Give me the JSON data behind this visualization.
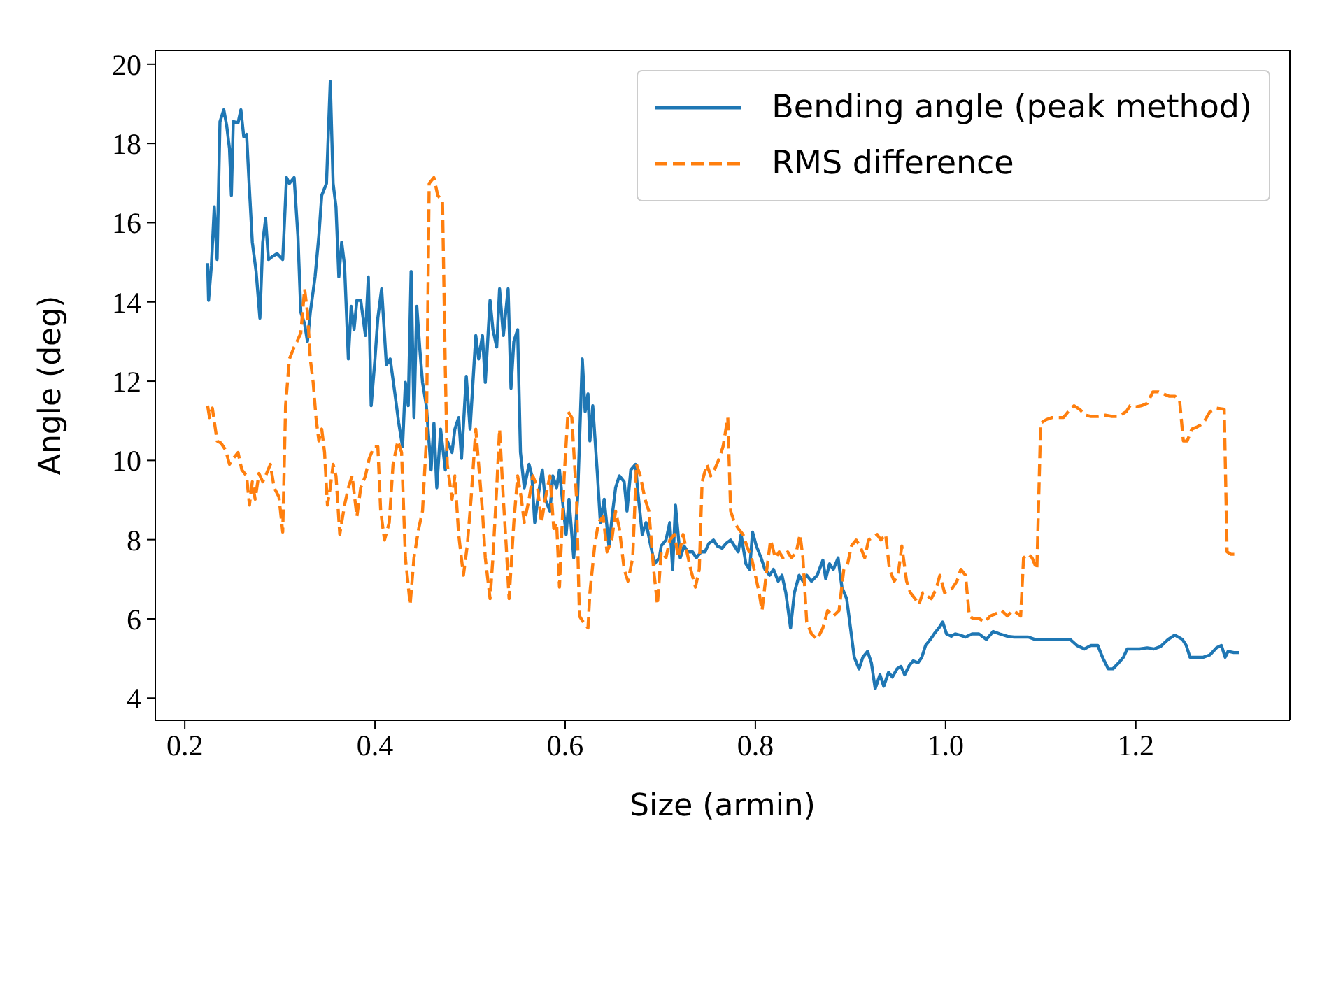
{
  "chart_data": {
    "type": "line",
    "xlabel": "Size (armin)",
    "ylabel": "Angle (deg)",
    "xlim": [
      0.169,
      1.362
    ],
    "xticks": [
      0.2,
      0.4,
      0.6,
      0.8,
      {
        "value": 1.0,
        "label": "1.0"
      },
      1.2
    ],
    "ylim": [
      3.44,
      20.35
    ],
    "yticks": [
      4,
      6,
      8,
      10,
      12,
      14,
      16,
      18,
      20
    ],
    "legend": "top right",
    "marker": "none",
    "series": [
      {
        "name": "Bending angle (peak method)",
        "color": "#1f77b4",
        "line_style": "solid",
        "x": [
          0.224,
          0.225,
          0.228,
          0.231,
          0.234,
          0.237,
          0.241,
          0.244,
          0.247,
          0.249,
          0.251,
          0.256,
          0.259,
          0.262,
          0.265,
          0.268,
          0.271,
          0.275,
          0.279,
          0.282,
          0.285,
          0.288,
          0.293,
          0.297,
          0.303,
          0.307,
          0.31,
          0.315,
          0.319,
          0.322,
          0.326,
          0.329,
          0.332,
          0.337,
          0.341,
          0.344,
          0.349,
          0.353,
          0.356,
          0.359,
          0.362,
          0.365,
          0.368,
          0.372,
          0.375,
          0.378,
          0.381,
          0.385,
          0.39,
          0.393,
          0.396,
          0.4,
          0.403,
          0.407,
          0.412,
          0.416,
          0.421,
          0.425,
          0.429,
          0.432,
          0.435,
          0.438,
          0.441,
          0.444,
          0.447,
          0.45,
          0.454,
          0.459,
          0.462,
          0.465,
          0.469,
          0.474,
          0.476,
          0.481,
          0.484,
          0.488,
          0.491,
          0.496,
          0.5,
          0.503,
          0.506,
          0.509,
          0.513,
          0.516,
          0.521,
          0.524,
          0.528,
          0.531,
          0.535,
          0.54,
          0.543,
          0.546,
          0.55,
          0.553,
          0.557,
          0.562,
          0.565,
          0.568,
          0.572,
          0.576,
          0.579,
          0.584,
          0.587,
          0.591,
          0.594,
          0.597,
          0.601,
          0.604,
          0.609,
          0.613,
          0.618,
          0.621,
          0.624,
          0.626,
          0.629,
          0.634,
          0.637,
          0.641,
          0.646,
          0.65,
          0.653,
          0.657,
          0.662,
          0.665,
          0.669,
          0.674,
          0.676,
          0.681,
          0.685,
          0.69,
          0.694,
          0.699,
          0.701,
          0.706,
          0.71,
          0.713,
          0.716,
          0.721,
          0.725,
          0.729,
          0.734,
          0.738,
          0.743,
          0.747,
          0.751,
          0.756,
          0.76,
          0.765,
          0.769,
          0.774,
          0.778,
          0.782,
          0.785,
          0.79,
          0.794,
          0.797,
          0.801,
          0.806,
          0.81,
          0.815,
          0.819,
          0.824,
          0.828,
          0.832,
          0.837,
          0.841,
          0.846,
          0.85,
          0.854,
          0.859,
          0.865,
          0.871,
          0.874,
          0.878,
          0.882,
          0.887,
          0.891,
          0.896,
          0.9,
          0.904,
          0.909,
          0.913,
          0.918,
          0.922,
          0.926,
          0.931,
          0.935,
          0.94,
          0.944,
          0.949,
          0.953,
          0.957,
          0.962,
          0.966,
          0.971,
          0.975,
          0.979,
          0.984,
          0.988,
          0.993,
          0.997,
          1.001,
          1.006,
          1.01,
          1.015,
          1.021,
          1.028,
          1.035,
          1.043,
          1.05,
          1.057,
          1.065,
          1.072,
          1.079,
          1.087,
          1.094,
          1.101,
          1.109,
          1.116,
          1.124,
          1.131,
          1.138,
          1.146,
          1.153,
          1.16,
          1.165,
          1.171,
          1.176,
          1.182,
          1.187,
          1.191,
          1.197,
          1.204,
          1.212,
          1.219,
          1.226,
          1.234,
          1.241,
          1.249,
          1.253,
          1.257,
          1.263,
          1.271,
          1.278,
          1.285,
          1.29,
          1.294,
          1.297,
          1.303,
          1.309
        ],
        "values": [
          14.98,
          14.04,
          14.92,
          16.4,
          15.07,
          18.55,
          18.85,
          18.46,
          17.87,
          16.69,
          18.55,
          18.52,
          18.85,
          18.17,
          18.23,
          16.84,
          15.51,
          14.77,
          13.59,
          15.51,
          16.1,
          15.07,
          15.16,
          15.22,
          15.07,
          17.14,
          16.99,
          17.14,
          15.66,
          13.74,
          13.45,
          13.0,
          13.74,
          14.63,
          15.66,
          16.69,
          16.99,
          19.56,
          16.99,
          16.4,
          14.63,
          15.51,
          14.92,
          12.56,
          13.89,
          13.3,
          14.04,
          14.04,
          13.15,
          14.63,
          11.38,
          12.56,
          13.59,
          14.33,
          12.41,
          12.56,
          11.68,
          10.94,
          10.35,
          11.97,
          11.38,
          14.77,
          11.08,
          13.89,
          12.86,
          11.97,
          11.38,
          9.76,
          10.94,
          9.31,
          10.79,
          9.76,
          10.49,
          10.2,
          10.79,
          11.08,
          10.05,
          12.12,
          10.79,
          11.97,
          13.15,
          12.56,
          13.15,
          11.97,
          14.04,
          13.3,
          12.86,
          14.33,
          13.15,
          14.33,
          11.82,
          13.0,
          13.3,
          10.2,
          9.31,
          9.9,
          9.61,
          8.43,
          9.17,
          9.76,
          9.02,
          8.72,
          9.61,
          9.31,
          9.76,
          9.02,
          8.13,
          9.02,
          7.54,
          9.02,
          12.56,
          11.23,
          11.68,
          10.49,
          11.38,
          9.61,
          8.43,
          9.02,
          7.84,
          8.72,
          9.31,
          9.61,
          9.46,
          8.72,
          9.76,
          9.9,
          9.31,
          8.13,
          8.43,
          7.84,
          7.39,
          7.54,
          7.84,
          7.99,
          8.43,
          7.25,
          8.87,
          7.54,
          7.84,
          7.69,
          7.69,
          7.54,
          7.69,
          7.69,
          7.9,
          7.99,
          7.84,
          7.78,
          7.9,
          7.99,
          7.84,
          7.69,
          8.13,
          7.39,
          7.25,
          8.19,
          7.84,
          7.54,
          7.25,
          7.1,
          7.25,
          6.95,
          7.1,
          6.66,
          5.77,
          6.66,
          7.1,
          6.95,
          7.1,
          6.95,
          7.1,
          7.48,
          7.01,
          7.39,
          7.25,
          7.54,
          6.8,
          6.51,
          5.77,
          5.03,
          4.74,
          5.03,
          5.18,
          4.89,
          4.24,
          4.59,
          4.3,
          4.65,
          4.53,
          4.74,
          4.8,
          4.59,
          4.83,
          4.94,
          4.89,
          5.03,
          5.33,
          5.48,
          5.62,
          5.77,
          5.92,
          5.62,
          5.56,
          5.62,
          5.59,
          5.54,
          5.62,
          5.62,
          5.48,
          5.68,
          5.62,
          5.56,
          5.54,
          5.54,
          5.54,
          5.48,
          5.48,
          5.48,
          5.48,
          5.48,
          5.48,
          5.33,
          5.24,
          5.33,
          5.33,
          5.03,
          4.74,
          4.74,
          4.89,
          5.03,
          5.24,
          5.24,
          5.24,
          5.27,
          5.24,
          5.3,
          5.48,
          5.59,
          5.48,
          5.33,
          5.03,
          5.03,
          5.03,
          5.09,
          5.27,
          5.33,
          5.03,
          5.18,
          5.15,
          5.15
        ]
      },
      {
        "name": "RMS difference",
        "color": "#ff7f0e",
        "line_style": "dashed",
        "x": [
          0.224,
          0.226,
          0.229,
          0.234,
          0.238,
          0.243,
          0.247,
          0.251,
          0.256,
          0.26,
          0.265,
          0.268,
          0.271,
          0.274,
          0.278,
          0.282,
          0.285,
          0.29,
          0.294,
          0.299,
          0.303,
          0.306,
          0.31,
          0.315,
          0.318,
          0.322,
          0.326,
          0.329,
          0.332,
          0.335,
          0.338,
          0.341,
          0.344,
          0.347,
          0.35,
          0.353,
          0.356,
          0.359,
          0.363,
          0.368,
          0.372,
          0.376,
          0.381,
          0.385,
          0.39,
          0.394,
          0.399,
          0.403,
          0.406,
          0.41,
          0.415,
          0.419,
          0.424,
          0.428,
          0.432,
          0.437,
          0.441,
          0.446,
          0.45,
          0.454,
          0.457,
          0.462,
          0.466,
          0.471,
          0.474,
          0.476,
          0.481,
          0.484,
          0.488,
          0.493,
          0.497,
          0.501,
          0.506,
          0.51,
          0.513,
          0.516,
          0.521,
          0.524,
          0.528,
          0.531,
          0.535,
          0.538,
          0.541,
          0.546,
          0.55,
          0.554,
          0.557,
          0.562,
          0.566,
          0.571,
          0.575,
          0.579,
          0.584,
          0.588,
          0.591,
          0.594,
          0.599,
          0.603,
          0.607,
          0.612,
          0.615,
          0.619,
          0.624,
          0.626,
          0.631,
          0.635,
          0.64,
          0.644,
          0.649,
          0.653,
          0.657,
          0.662,
          0.666,
          0.671,
          0.675,
          0.679,
          0.684,
          0.688,
          0.693,
          0.697,
          0.701,
          0.706,
          0.71,
          0.715,
          0.719,
          0.724,
          0.728,
          0.732,
          0.737,
          0.741,
          0.744,
          0.749,
          0.753,
          0.757,
          0.762,
          0.766,
          0.771,
          0.774,
          0.778,
          0.782,
          0.787,
          0.791,
          0.796,
          0.8,
          0.804,
          0.807,
          0.812,
          0.816,
          0.821,
          0.825,
          0.829,
          0.834,
          0.838,
          0.843,
          0.847,
          0.85,
          0.854,
          0.859,
          0.865,
          0.871,
          0.876,
          0.882,
          0.888,
          0.893,
          0.897,
          0.901,
          0.906,
          0.91,
          0.915,
          0.919,
          0.924,
          0.928,
          0.932,
          0.937,
          0.941,
          0.946,
          0.95,
          0.954,
          0.959,
          0.963,
          0.968,
          0.972,
          0.976,
          0.981,
          0.985,
          0.99,
          0.994,
          0.999,
          1.003,
          1.007,
          1.012,
          1.016,
          1.021,
          1.025,
          1.029,
          1.035,
          1.041,
          1.047,
          1.053,
          1.059,
          1.065,
          1.071,
          1.076,
          1.079,
          1.082,
          1.087,
          1.091,
          1.096,
          1.1,
          1.106,
          1.112,
          1.118,
          1.124,
          1.129,
          1.135,
          1.141,
          1.147,
          1.153,
          1.16,
          1.168,
          1.175,
          1.182,
          1.19,
          1.194,
          1.2,
          1.206,
          1.212,
          1.218,
          1.224,
          1.229,
          1.235,
          1.241,
          1.246,
          1.25,
          1.254,
          1.259,
          1.265,
          1.271,
          1.278,
          1.285,
          1.293,
          1.296,
          1.3,
          1.307
        ],
        "values": [
          11.38,
          11.08,
          11.32,
          10.49,
          10.44,
          10.26,
          9.9,
          10.05,
          10.2,
          9.76,
          9.61,
          8.87,
          9.46,
          9.02,
          9.67,
          9.46,
          9.61,
          9.9,
          9.31,
          9.08,
          8.19,
          11.38,
          12.56,
          12.86,
          13.0,
          13.21,
          14.33,
          13.74,
          12.56,
          11.97,
          11.08,
          10.49,
          10.79,
          10.2,
          8.87,
          9.31,
          9.9,
          9.61,
          8.13,
          8.87,
          9.31,
          9.61,
          8.58,
          9.31,
          9.61,
          10.05,
          10.35,
          10.35,
          8.72,
          7.99,
          8.43,
          9.9,
          10.49,
          10.2,
          7.54,
          6.36,
          7.54,
          8.28,
          8.72,
          10.49,
          16.99,
          17.14,
          16.69,
          16.55,
          12.27,
          9.9,
          9.02,
          9.61,
          8.13,
          7.1,
          7.84,
          9.02,
          10.79,
          9.61,
          8.72,
          7.54,
          6.51,
          7.54,
          9.31,
          10.79,
          9.02,
          7.84,
          6.51,
          8.43,
          9.61,
          9.02,
          8.43,
          9.02,
          9.61,
          9.31,
          8.43,
          9.02,
          9.61,
          8.28,
          8.43,
          6.8,
          9.61,
          11.23,
          11.08,
          9.02,
          6.07,
          5.92,
          5.77,
          6.66,
          7.84,
          8.43,
          8.58,
          7.69,
          7.99,
          8.72,
          8.28,
          7.25,
          6.95,
          7.54,
          9.9,
          9.61,
          9.02,
          8.72,
          7.25,
          6.36,
          7.69,
          7.54,
          7.99,
          8.13,
          7.54,
          8.13,
          7.69,
          7.25,
          6.8,
          7.25,
          9.46,
          9.9,
          9.61,
          9.76,
          10.05,
          10.35,
          11.08,
          8.72,
          8.43,
          8.28,
          8.13,
          7.84,
          7.54,
          7.1,
          6.66,
          6.21,
          7.25,
          7.99,
          7.54,
          7.69,
          7.54,
          7.69,
          7.54,
          7.69,
          8.13,
          7.54,
          5.92,
          5.62,
          5.48,
          5.77,
          6.21,
          6.07,
          6.21,
          7.25,
          7.39,
          7.84,
          7.99,
          7.84,
          7.54,
          7.99,
          8.07,
          8.13,
          7.99,
          8.13,
          7.25,
          6.95,
          7.1,
          7.84,
          6.95,
          6.66,
          6.51,
          6.36,
          6.66,
          6.57,
          6.51,
          6.75,
          7.1,
          6.66,
          6.72,
          6.77,
          6.95,
          7.25,
          7.1,
          6.07,
          6.01,
          6.01,
          5.92,
          6.07,
          6.13,
          6.21,
          6.07,
          6.21,
          6.13,
          6.07,
          7.54,
          7.63,
          7.54,
          7.25,
          10.94,
          11.03,
          11.08,
          11.08,
          11.08,
          11.23,
          11.38,
          11.29,
          11.14,
          11.11,
          11.11,
          11.14,
          11.11,
          11.11,
          11.23,
          11.38,
          11.35,
          11.38,
          11.44,
          11.73,
          11.73,
          11.68,
          11.62,
          11.62,
          11.53,
          10.49,
          10.49,
          10.79,
          10.85,
          10.94,
          11.23,
          11.32,
          11.29,
          7.69,
          7.63,
          7.63
        ]
      }
    ]
  }
}
